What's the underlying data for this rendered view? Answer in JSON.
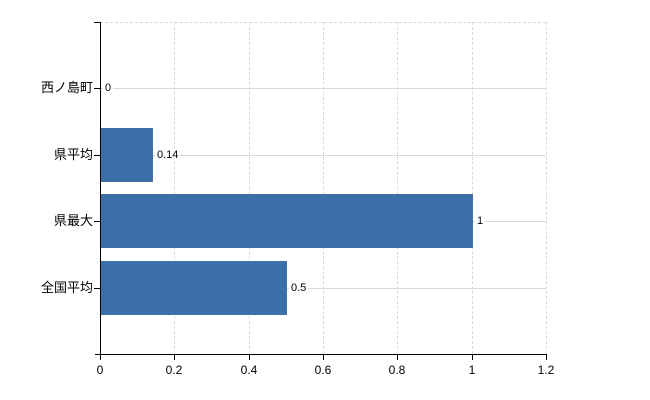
{
  "chart_data": {
    "type": "bar",
    "orientation": "horizontal",
    "categories": [
      "西ノ島町",
      "県平均",
      "県最大",
      "全国平均"
    ],
    "values": [
      0,
      0.14,
      1,
      0.5
    ],
    "value_labels": [
      "0",
      "0.14",
      "1",
      "0.5"
    ],
    "x_tick_values": [
      0,
      0.2,
      0.4,
      0.6,
      0.8,
      1,
      1.2
    ],
    "x_tick_labels": [
      "0",
      "0.2",
      "0.4",
      "0.6",
      "0.8",
      "1",
      "1.2"
    ],
    "xlim": [
      0,
      1.2
    ],
    "grid": true,
    "legend": false,
    "bar_color": "#3d6fa8",
    "grid_solid_color": "#d9d9d9",
    "grid_dash_color": "#d9d9d9",
    "axis_color": "#000000",
    "text_color": "#000000"
  }
}
